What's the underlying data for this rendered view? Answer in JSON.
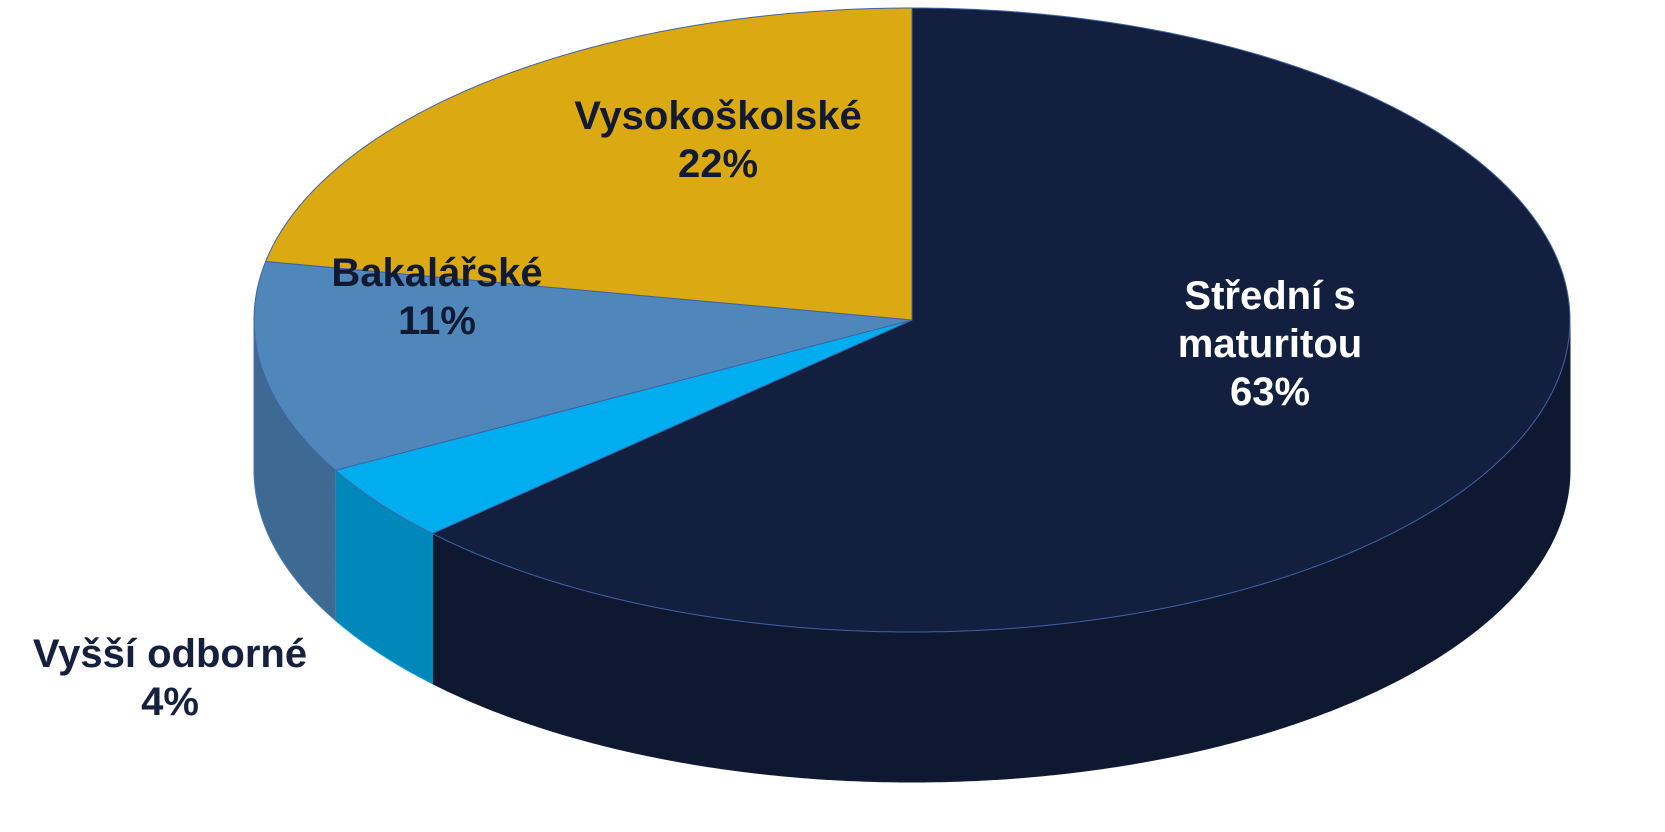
{
  "chart_data": {
    "type": "pie",
    "categories": [
      "Střední s maturitou",
      "Vyšší odborné",
      "Bakalářské",
      "Vysokoškolské"
    ],
    "values": [
      63,
      4,
      11,
      22
    ],
    "value_labels": [
      "63%",
      "4%",
      "11%",
      "22%"
    ],
    "colors": [
      "#131f3f",
      "#00aeef",
      "#4f87bb",
      "#dba912"
    ]
  }
}
